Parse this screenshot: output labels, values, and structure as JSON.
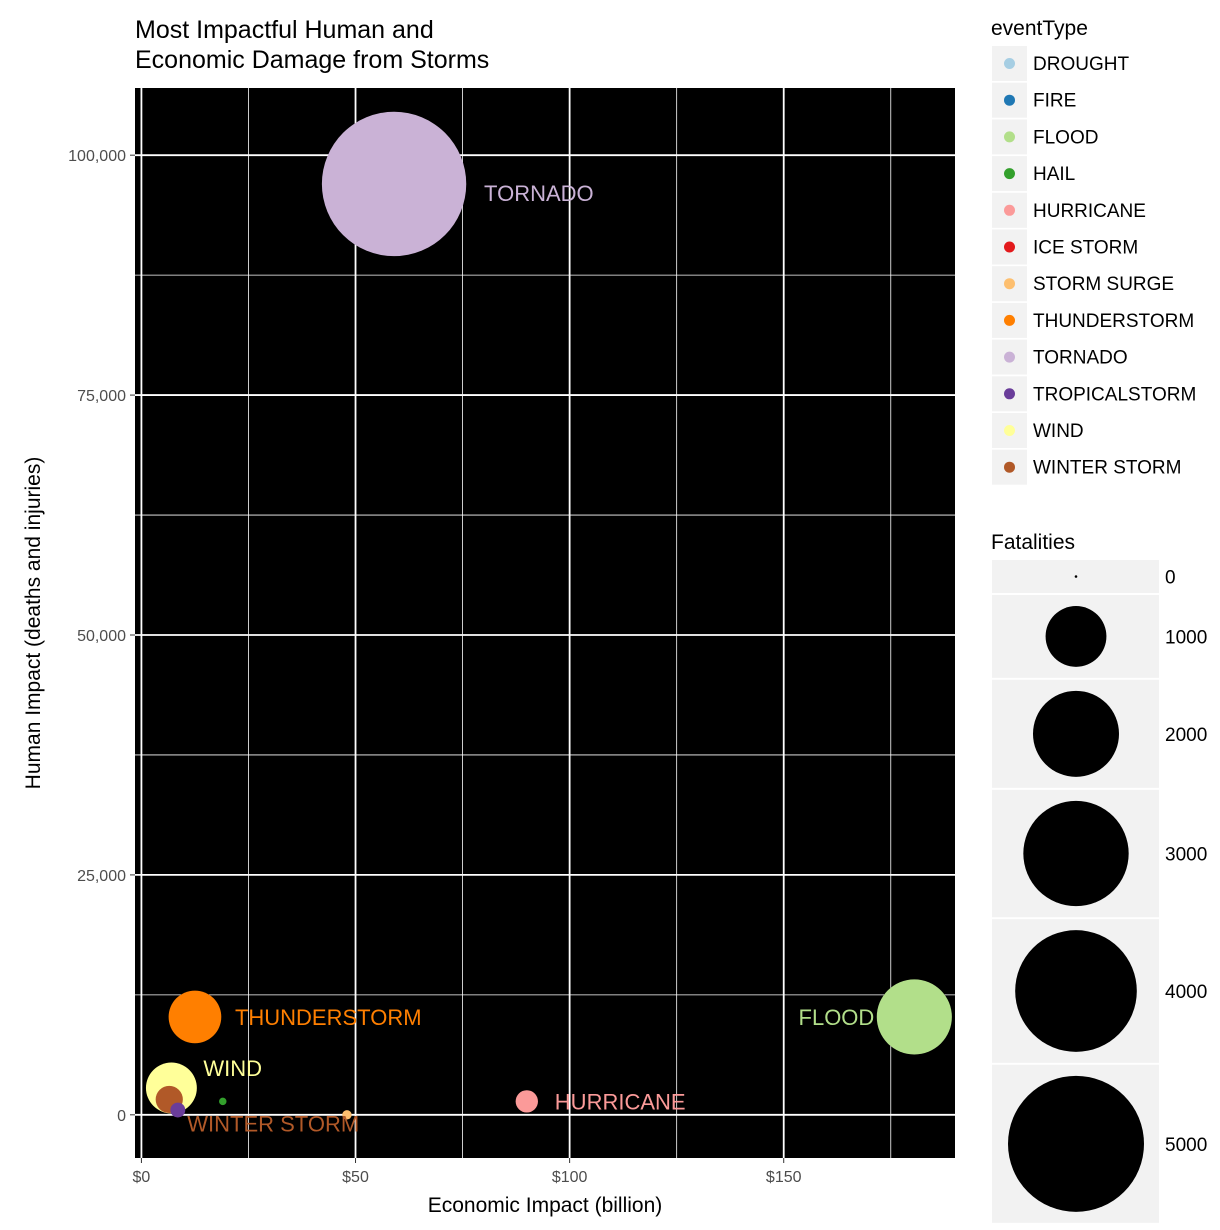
{
  "chart_data": {
    "type": "scatter",
    "title": [
      "Most Impactful Human and",
      "Economic Damage from Storms"
    ],
    "xlabel": "Economic Impact (billion)",
    "ylabel": "Human Impact (deaths and injuries)",
    "xlim": [
      -1.5,
      190
    ],
    "ylim": [
      -4500,
      107000
    ],
    "x_ticks": [
      0,
      50,
      100,
      150
    ],
    "x_tick_labels": [
      "$0",
      "$50",
      "$100",
      "$150"
    ],
    "y_ticks": [
      0,
      25000,
      50000,
      75000,
      100000
    ],
    "y_tick_labels": [
      "0",
      "25,000",
      "50,000",
      "75,000",
      "100,000"
    ],
    "background": "#000000",
    "grid": true,
    "points": [
      {
        "event": "TORNADO",
        "x": 59,
        "y": 97000,
        "fatalities": 5633,
        "label": "TORNADO"
      },
      {
        "event": "FLOOD",
        "x": 180.5,
        "y": 10200,
        "fatalities": 1525,
        "label": "FLOOD"
      },
      {
        "event": "THUNDERSTORM",
        "x": 12.5,
        "y": 10200,
        "fatalities": 750,
        "label": "THUNDERSTORM"
      },
      {
        "event": "WIND",
        "x": 7,
        "y": 2800,
        "fatalities": 700,
        "label": "WIND"
      },
      {
        "event": "WINTER STORM",
        "x": 6.5,
        "y": 1600,
        "fatalities": 200,
        "label": "WINTER STORM"
      },
      {
        "event": "HURRICANE",
        "x": 90,
        "y": 1400,
        "fatalities": 135,
        "label": "HURRICANE"
      },
      {
        "event": "HAIL",
        "x": 19,
        "y": 1400,
        "fatalities": 15,
        "label": ""
      },
      {
        "event": "STORM SURGE",
        "x": 48,
        "y": 0,
        "fatalities": 24,
        "label": ""
      },
      {
        "event": "TROPICALSTORM",
        "x": 8.5,
        "y": 500,
        "fatalities": 60,
        "label": ""
      }
    ],
    "legend_color": {
      "title": "eventType",
      "items": [
        {
          "label": "DROUGHT",
          "color": "#a6cee3"
        },
        {
          "label": "FIRE",
          "color": "#1f78b4"
        },
        {
          "label": "FLOOD",
          "color": "#b2df8a"
        },
        {
          "label": "HAIL",
          "color": "#33a02c"
        },
        {
          "label": "HURRICANE",
          "color": "#fb9a99"
        },
        {
          "label": "ICE STORM",
          "color": "#e31a1c"
        },
        {
          "label": "STORM SURGE",
          "color": "#fdbf6f"
        },
        {
          "label": "THUNDERSTORM",
          "color": "#ff7f00"
        },
        {
          "label": "TORNADO",
          "color": "#cab2d6"
        },
        {
          "label": "TROPICALSTORM",
          "color": "#6a3d9a"
        },
        {
          "label": "WIND",
          "color": "#ffff99"
        },
        {
          "label": "WINTER STORM",
          "color": "#b15928"
        }
      ]
    },
    "legend_size": {
      "title": "Fatalities",
      "items": [
        {
          "label": "0",
          "value": 0
        },
        {
          "label": "1000",
          "value": 1000
        },
        {
          "label": "2000",
          "value": 2000
        },
        {
          "label": "3000",
          "value": 3000
        },
        {
          "label": "4000",
          "value": 4000
        },
        {
          "label": "5000",
          "value": 5000
        }
      ]
    }
  }
}
